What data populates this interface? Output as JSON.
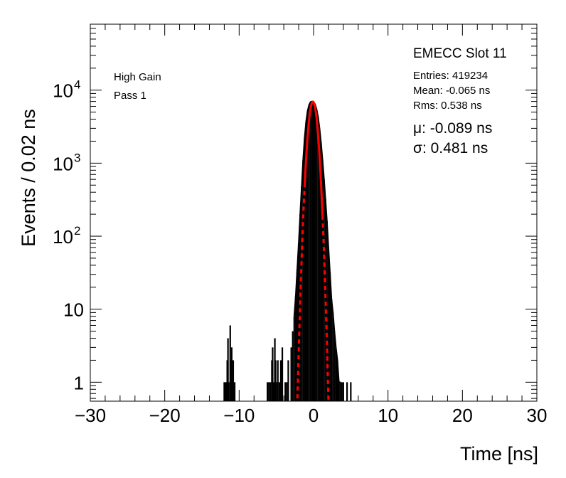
{
  "chart_data": {
    "type": "line",
    "title": "",
    "xlabel": "Time [ns]",
    "ylabel": "Events / 0.02 ns",
    "xlim": [
      -30,
      30
    ],
    "ylim": [
      0.55,
      80000
    ],
    "y_scale": "log",
    "grid": false,
    "x_ticks": [
      {
        "value": -30,
        "label": "−30"
      },
      {
        "value": -20,
        "label": "−20"
      },
      {
        "value": -10,
        "label": "−10"
      },
      {
        "value": 0,
        "label": "0"
      },
      {
        "value": 10,
        "label": "10"
      },
      {
        "value": 20,
        "label": "20"
      },
      {
        "value": 30,
        "label": "30"
      }
    ],
    "y_ticks": [
      {
        "value": 1,
        "base": "1",
        "exp": ""
      },
      {
        "value": 10,
        "base": "10",
        "exp": ""
      },
      {
        "value": 100,
        "base": "10",
        "exp": "2"
      },
      {
        "value": 1000,
        "base": "10",
        "exp": "3"
      },
      {
        "value": 10000,
        "base": "10",
        "exp": "4"
      }
    ],
    "annotations": {
      "header": "EMECC Slot 11",
      "entries": "Entries: 419234",
      "mean": "Mean: -0.065 ns",
      "rms": "Rms: 0.538 ns",
      "mu": "μ: -0.089 ns",
      "sigma": "σ: 0.481 ns",
      "gain": "High Gain",
      "pass": "Pass 1"
    },
    "series": [
      {
        "name": "",
        "style": "histogram",
        "color": "#000000",
        "x": [
          -12.0,
          -11.8,
          -11.6,
          -11.5,
          -11.4,
          -11.2,
          -11.1,
          -11.0,
          -10.9,
          -10.8,
          -10.6,
          -6.2,
          -6.0,
          -5.8,
          -5.6,
          -5.5,
          -5.4,
          -5.2,
          -5.1,
          -5.0,
          -4.8,
          -4.6,
          -4.4,
          -4.2,
          -3.8,
          -3.6,
          -3.4,
          -3.0,
          -2.8,
          -2.6,
          -2.4,
          -2.2,
          -2.0,
          -1.8,
          -1.6,
          -1.4,
          -1.2,
          -1.0,
          -0.8,
          -0.6,
          -0.4,
          -0.2,
          0.0,
          0.2,
          0.4,
          0.6,
          0.8,
          1.0,
          1.2,
          1.4,
          1.6,
          1.8,
          2.0,
          2.2,
          2.4,
          2.6,
          2.8,
          3.0,
          3.2,
          3.4,
          3.6,
          3.8,
          4.0,
          4.5,
          5.0
        ],
        "y": [
          1,
          1,
          2,
          4,
          1,
          6,
          2,
          3,
          1,
          2,
          1,
          1,
          1,
          1,
          2,
          3,
          1,
          4,
          2,
          1,
          2,
          1,
          2,
          3,
          1,
          1,
          2,
          3,
          5,
          8,
          15,
          35,
          80,
          200,
          480,
          1100,
          2200,
          3700,
          5200,
          6300,
          6900,
          7000,
          6900,
          6400,
          5500,
          4300,
          3000,
          1900,
          1100,
          600,
          320,
          160,
          70,
          32,
          14,
          9,
          5,
          3,
          2,
          1,
          1,
          1,
          1,
          1,
          1
        ]
      },
      {
        "name": "",
        "style": "gaussian-fit",
        "color": "#ff0000",
        "mu": -0.089,
        "sigma": 0.481,
        "amplitude": 6950,
        "fit_range": [
          -1.2,
          1.2
        ]
      }
    ]
  }
}
